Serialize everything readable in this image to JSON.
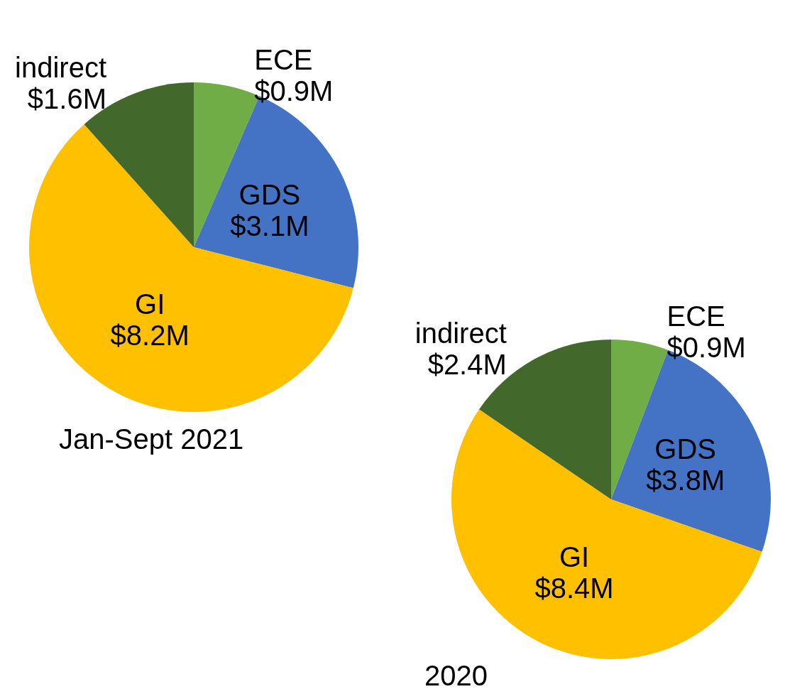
{
  "chart_data": [
    {
      "type": "pie",
      "title": "Jan-Sept 2021",
      "categories": [
        "ECE",
        "GDS",
        "GI",
        "indirect"
      ],
      "values": [
        0.9,
        3.1,
        8.2,
        1.6
      ],
      "value_labels": [
        "$0.9M",
        "$3.1M",
        "$8.2M",
        "$1.6M"
      ],
      "colors": [
        "#70ad47",
        "#4472c4",
        "#ffc000",
        "#43682b"
      ]
    },
    {
      "type": "pie",
      "title": "2020",
      "categories": [
        "ECE",
        "GDS",
        "GI",
        "indirect"
      ],
      "values": [
        0.9,
        3.8,
        8.4,
        2.4
      ],
      "value_labels": [
        "$0.9M",
        "$3.8M",
        "$8.4M",
        "$2.4M"
      ],
      "colors": [
        "#70ad47",
        "#4472c4",
        "#ffc000",
        "#43682b"
      ]
    }
  ]
}
